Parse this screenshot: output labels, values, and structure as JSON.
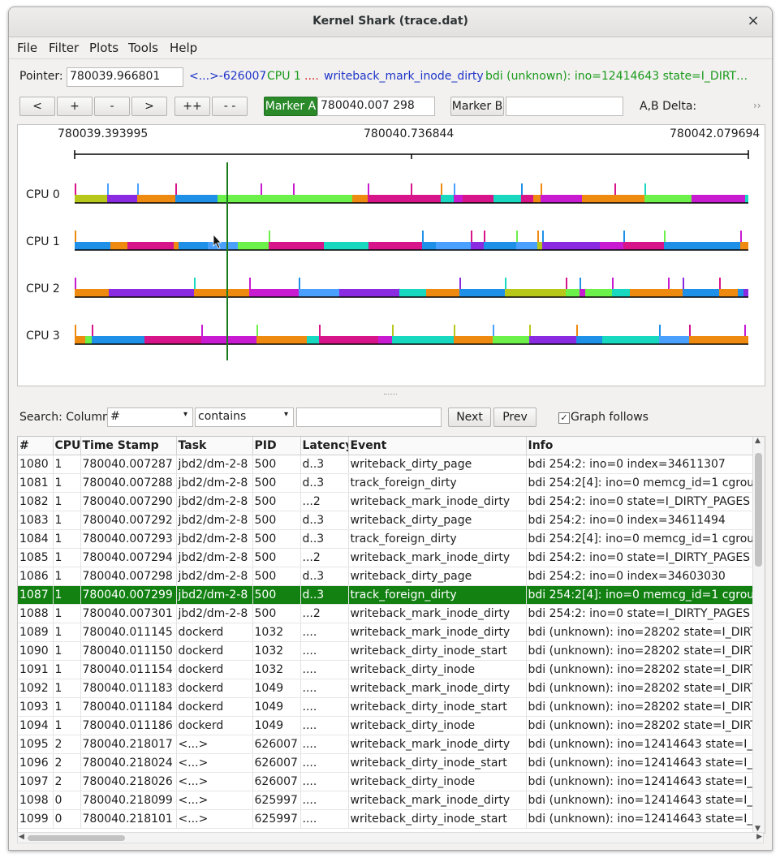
{
  "window": {
    "title": "Kernel Shark (trace.dat)",
    "close": "×"
  },
  "menu": [
    "File",
    "Filter",
    "Plots",
    "Tools",
    "Help"
  ],
  "pointer": {
    "label": "Pointer:",
    "value": "780039.966801",
    "task": "<...>-626007",
    "cpu": "CPU 1",
    "latency": "....",
    "event": "writeback_mark_inode_dirty",
    "info": "bdi (unknown): ino=12414643 state=I_DIRT…"
  },
  "nav": {
    "left": "<",
    "plus": "+",
    "minus": "-",
    "right": ">",
    "plusplus": "++",
    "minusminus": "- -"
  },
  "markers": {
    "a_label": "Marker A",
    "a_value": "780040.007 298",
    "b_label": "Marker B",
    "b_value": "",
    "delta_label": "A,B Delta:",
    "more": "››"
  },
  "colors": {
    "marker_a": "#2a8a2a",
    "selected_row": "#128112"
  },
  "graph": {
    "time_start": "780039.393995",
    "time_mid": "780040.736844",
    "time_end": "780042.079694",
    "cpus": [
      "CPU 0",
      "CPU 1",
      "CPU 2",
      "CPU 3"
    ]
  },
  "search": {
    "label": "Search: Column",
    "column": "#",
    "condition": "contains",
    "text": "",
    "next": "Next",
    "prev": "Prev",
    "follows_checked": "✓",
    "follows_label": "Graph follows"
  },
  "table": {
    "columns": [
      "#",
      "CPU",
      "Time Stamp",
      "Task",
      "PID",
      "Latency",
      "Event",
      "Info"
    ],
    "selected_index": 7,
    "rows": [
      [
        "1080",
        "1",
        "780040.007287",
        "jbd2/dm-2-8",
        "500",
        "d..3",
        "writeback_dirty_page",
        "bdi 254:2: ino=0 index=34611307"
      ],
      [
        "1081",
        "1",
        "780040.007288",
        "jbd2/dm-2-8",
        "500",
        "d..3",
        "track_foreign_dirty",
        "bdi 254:2[4]: ino=0 memcg_id=1 cgroup_i"
      ],
      [
        "1082",
        "1",
        "780040.007290",
        "jbd2/dm-2-8",
        "500",
        "...2",
        "writeback_mark_inode_dirty",
        "bdi 254:2: ino=0 state=I_DIRTY_PAGES fla"
      ],
      [
        "1083",
        "1",
        "780040.007292",
        "jbd2/dm-2-8",
        "500",
        "d..3",
        "writeback_dirty_page",
        "bdi 254:2: ino=0 index=34611494"
      ],
      [
        "1084",
        "1",
        "780040.007293",
        "jbd2/dm-2-8",
        "500",
        "d..3",
        "track_foreign_dirty",
        "bdi 254:2[4]: ino=0 memcg_id=1 cgroup_i"
      ],
      [
        "1085",
        "1",
        "780040.007294",
        "jbd2/dm-2-8",
        "500",
        "...2",
        "writeback_mark_inode_dirty",
        "bdi 254:2: ino=0 state=I_DIRTY_PAGES fla"
      ],
      [
        "1086",
        "1",
        "780040.007298",
        "jbd2/dm-2-8",
        "500",
        "d..3",
        "writeback_dirty_page",
        "bdi 254:2: ino=0 index=34603030"
      ],
      [
        "1087",
        "1",
        "780040.007299",
        "jbd2/dm-2-8",
        "500",
        "d..3",
        "track_foreign_dirty",
        "bdi 254:2[4]: ino=0 memcg_id=1 cgroup_i"
      ],
      [
        "1088",
        "1",
        "780040.007301",
        "jbd2/dm-2-8",
        "500",
        "...2",
        "writeback_mark_inode_dirty",
        "bdi 254:2: ino=0 state=I_DIRTY_PAGES fla"
      ],
      [
        "1089",
        "1",
        "780040.011145",
        "dockerd",
        "1032",
        "....",
        "writeback_mark_inode_dirty",
        "bdi (unknown): ino=28202 state=I_DIRTY_"
      ],
      [
        "1090",
        "1",
        "780040.011150",
        "dockerd",
        "1032",
        "....",
        "writeback_dirty_inode_start",
        "bdi (unknown): ino=28202 state=I_DIRTY_"
      ],
      [
        "1091",
        "1",
        "780040.011154",
        "dockerd",
        "1032",
        "....",
        "writeback_dirty_inode",
        "bdi (unknown): ino=28202 state=I_DIRTY_"
      ],
      [
        "1092",
        "1",
        "780040.011183",
        "dockerd",
        "1049",
        "....",
        "writeback_mark_inode_dirty",
        "bdi (unknown): ino=28202 state=I_DIRTY_"
      ],
      [
        "1093",
        "1",
        "780040.011184",
        "dockerd",
        "1049",
        "....",
        "writeback_dirty_inode_start",
        "bdi (unknown): ino=28202 state=I_DIRTY_"
      ],
      [
        "1094",
        "1",
        "780040.011186",
        "dockerd",
        "1049",
        "....",
        "writeback_dirty_inode",
        "bdi (unknown): ino=28202 state=I_DIRTY_"
      ],
      [
        "1095",
        "2",
        "780040.218017",
        "<...>",
        "626007",
        "....",
        "writeback_mark_inode_dirty",
        "bdi (unknown): ino=12414643 state=I_DIR"
      ],
      [
        "1096",
        "2",
        "780040.218024",
        "<...>",
        "626007",
        "....",
        "writeback_dirty_inode_start",
        "bdi (unknown): ino=12414643 state=I_DIR"
      ],
      [
        "1097",
        "2",
        "780040.218026",
        "<...>",
        "626007",
        "....",
        "writeback_dirty_inode",
        "bdi (unknown): ino=12414643 state=I_DIR"
      ],
      [
        "1098",
        "0",
        "780040.218099",
        "<...>",
        "625997",
        "....",
        "writeback_mark_inode_dirty",
        "bdi (unknown): ino=12414643 state=I_DIR"
      ],
      [
        "1099",
        "0",
        "780040.218101",
        "<...>",
        "625997",
        "....",
        "writeback_dirty_inode_start",
        "bdi (unknown): ino=12414643 state=I_DIR"
      ]
    ]
  }
}
